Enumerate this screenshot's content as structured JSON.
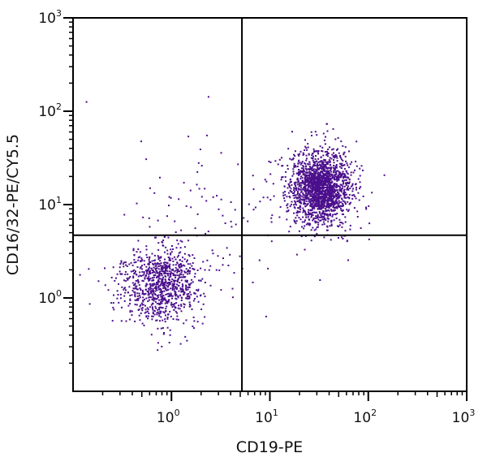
{
  "chart_data": {
    "type": "scatter",
    "title": "",
    "xlabel": "CD19-PE",
    "ylabel": "CD16/32-PE/CY5.5",
    "x_scale": "log",
    "y_scale": "log",
    "xlim": [
      0.1,
      1000
    ],
    "ylim": [
      0.1,
      1000
    ],
    "grid": false,
    "x_ticks": [
      {
        "base": "10",
        "exp": "0",
        "value": 1
      },
      {
        "base": "10",
        "exp": "1",
        "value": 10
      },
      {
        "base": "10",
        "exp": "2",
        "value": 100
      },
      {
        "base": "10",
        "exp": "3",
        "value": 1000
      }
    ],
    "y_ticks": [
      {
        "base": "10",
        "exp": "0",
        "value": 1
      },
      {
        "base": "10",
        "exp": "1",
        "value": 10
      },
      {
        "base": "10",
        "exp": "2",
        "value": 100
      },
      {
        "base": "10",
        "exp": "3",
        "value": 1000
      }
    ],
    "quadrant_gate": {
      "x": 5.2,
      "y": 4.7
    },
    "point_color": "#4b0f8c",
    "populations": [
      {
        "center": [
          0.8,
          1.4
        ],
        "log_sd": [
          0.2,
          0.19
        ],
        "count": 950
      },
      {
        "center": [
          33,
          15
        ],
        "log_sd": [
          0.15,
          0.18
        ],
        "count": 1900
      },
      {
        "center": [
          2.5,
          8
        ],
        "log_sd": [
          0.45,
          0.45
        ],
        "count": 90
      }
    ]
  }
}
